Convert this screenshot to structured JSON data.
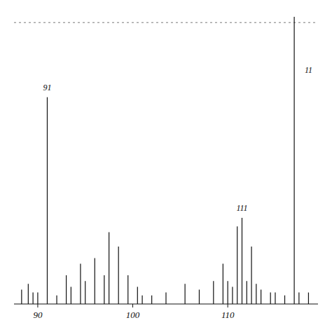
{
  "chart_data": {
    "type": "stem",
    "x": [
      88.3,
      89.0,
      89.5,
      90.0,
      91.0,
      92.0,
      93.0,
      93.5,
      94.5,
      95.0,
      96.0,
      97.0,
      97.5,
      98.5,
      99.5,
      100.5,
      101.0,
      102.0,
      103.5,
      105.5,
      107.0,
      108.5,
      109.5,
      110.0,
      110.5,
      111.0,
      111.5,
      112.0,
      112.5,
      113.0,
      113.5,
      114.5,
      115.0,
      116.0,
      117.0,
      117.5,
      118.5
    ],
    "values": [
      5,
      7,
      4,
      4,
      72,
      3,
      10,
      6,
      14,
      8,
      16,
      10,
      25,
      20,
      10,
      6,
      3,
      3,
      4,
      7,
      5,
      8,
      14,
      8,
      6,
      27,
      30,
      8,
      20,
      7,
      5,
      4,
      4,
      3,
      100,
      4,
      4
    ],
    "color": "#111111",
    "xlim": [
      87.5,
      119.5
    ],
    "ylim": [
      0,
      100
    ],
    "xticks": [
      90,
      100,
      110
    ],
    "tick_labels": "x",
    "grid": false,
    "annotations": [
      {
        "text": "91",
        "x": 91.0,
        "y": 74
      },
      {
        "text": "111",
        "x": 111.5,
        "y": 32
      },
      {
        "text": "11",
        "x": 118.5,
        "y": 80
      }
    ],
    "reference_lines": [
      {
        "y": 98,
        "line_style": "dashed",
        "color": "#555555"
      }
    ]
  }
}
